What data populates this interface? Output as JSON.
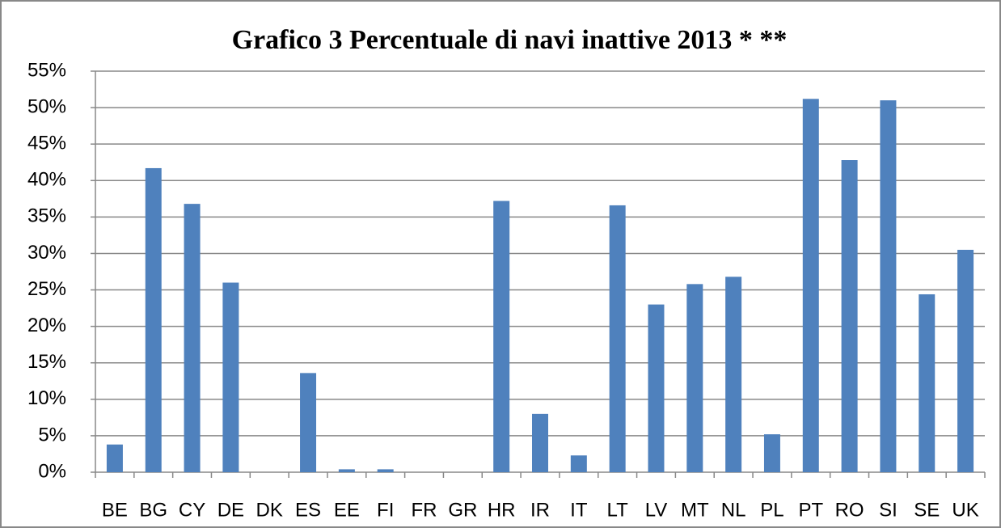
{
  "chart_data": {
    "type": "bar",
    "title": "Grafico 3 Percentuale di navi inattive 2013 * **",
    "categories": [
      "BE",
      "BG",
      "CY",
      "DE",
      "DK",
      "ES",
      "EE",
      "FI",
      "FR",
      "GR",
      "HR",
      "IR",
      "IT",
      "LT",
      "LV",
      "MT",
      "NL",
      "PL",
      "PT",
      "RO",
      "SI",
      "SE",
      "UK"
    ],
    "values": [
      3.8,
      41.7,
      36.8,
      26.0,
      0,
      13.6,
      0.4,
      0.4,
      0,
      0,
      37.2,
      8.0,
      2.3,
      36.6,
      23.0,
      25.8,
      26.8,
      5.2,
      51.2,
      42.8,
      51.0,
      24.4,
      30.5
    ],
    "color": "#4f81bd",
    "ylim": [
      0,
      55
    ],
    "yticks": [
      {
        "value": 0,
        "label": "0%"
      },
      {
        "value": 5,
        "label": "5%"
      },
      {
        "value": 10,
        "label": "10%"
      },
      {
        "value": 15,
        "label": "15%"
      },
      {
        "value": 20,
        "label": "20%"
      },
      {
        "value": 25,
        "label": "25%"
      },
      {
        "value": 30,
        "label": "30%"
      },
      {
        "value": 35,
        "label": "35%"
      },
      {
        "value": 40,
        "label": "40%"
      },
      {
        "value": 45,
        "label": "45%"
      },
      {
        "value": 50,
        "label": "50%"
      },
      {
        "value": 55,
        "label": "55%"
      }
    ],
    "grid": true
  }
}
